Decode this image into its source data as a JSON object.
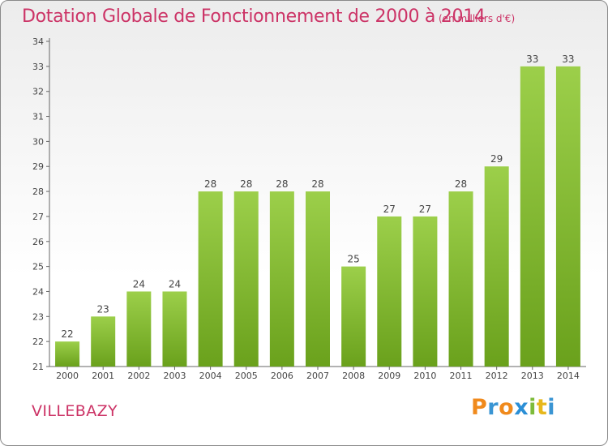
{
  "chart_data": {
    "type": "bar",
    "title": "Dotation Globale de Fonctionnement de 2000 à 2014",
    "unit": "(en milliers d'€)",
    "commune": "VILLEBAZY",
    "categories": [
      "2000",
      "2001",
      "2002",
      "2003",
      "2004",
      "2005",
      "2006",
      "2007",
      "2008",
      "2009",
      "2010",
      "2011",
      "2012",
      "2013",
      "2014"
    ],
    "values": [
      22,
      23,
      24,
      24,
      28,
      28,
      28,
      28,
      25,
      27,
      27,
      28,
      29,
      33,
      33
    ],
    "value_labels": [
      "22",
      "23",
      "24",
      "24",
      "28",
      "28",
      "28",
      "28",
      "25",
      "27",
      "27",
      "28",
      "29",
      "33",
      "33"
    ],
    "ylim": [
      21,
      34
    ],
    "yticks": [
      "21",
      "22",
      "23",
      "24",
      "25",
      "26",
      "27",
      "28",
      "29",
      "30",
      "31",
      "32",
      "33",
      "34"
    ],
    "grid": false,
    "colors": {
      "bar_light": "#9ccf4a",
      "bar_dark": "#6aa11c",
      "title": "#cc3366",
      "axis": "#666666",
      "text": "#444444"
    }
  },
  "branding": {
    "logo_letters": [
      "P",
      "r",
      "o",
      "x",
      "i",
      "t",
      "i"
    ],
    "logo_colors": [
      "#f08a1c",
      "#3a95d3",
      "#f08a1c",
      "#2b8fd6",
      "#7dbb3a",
      "#e7b81c",
      "#3a95d3"
    ]
  }
}
